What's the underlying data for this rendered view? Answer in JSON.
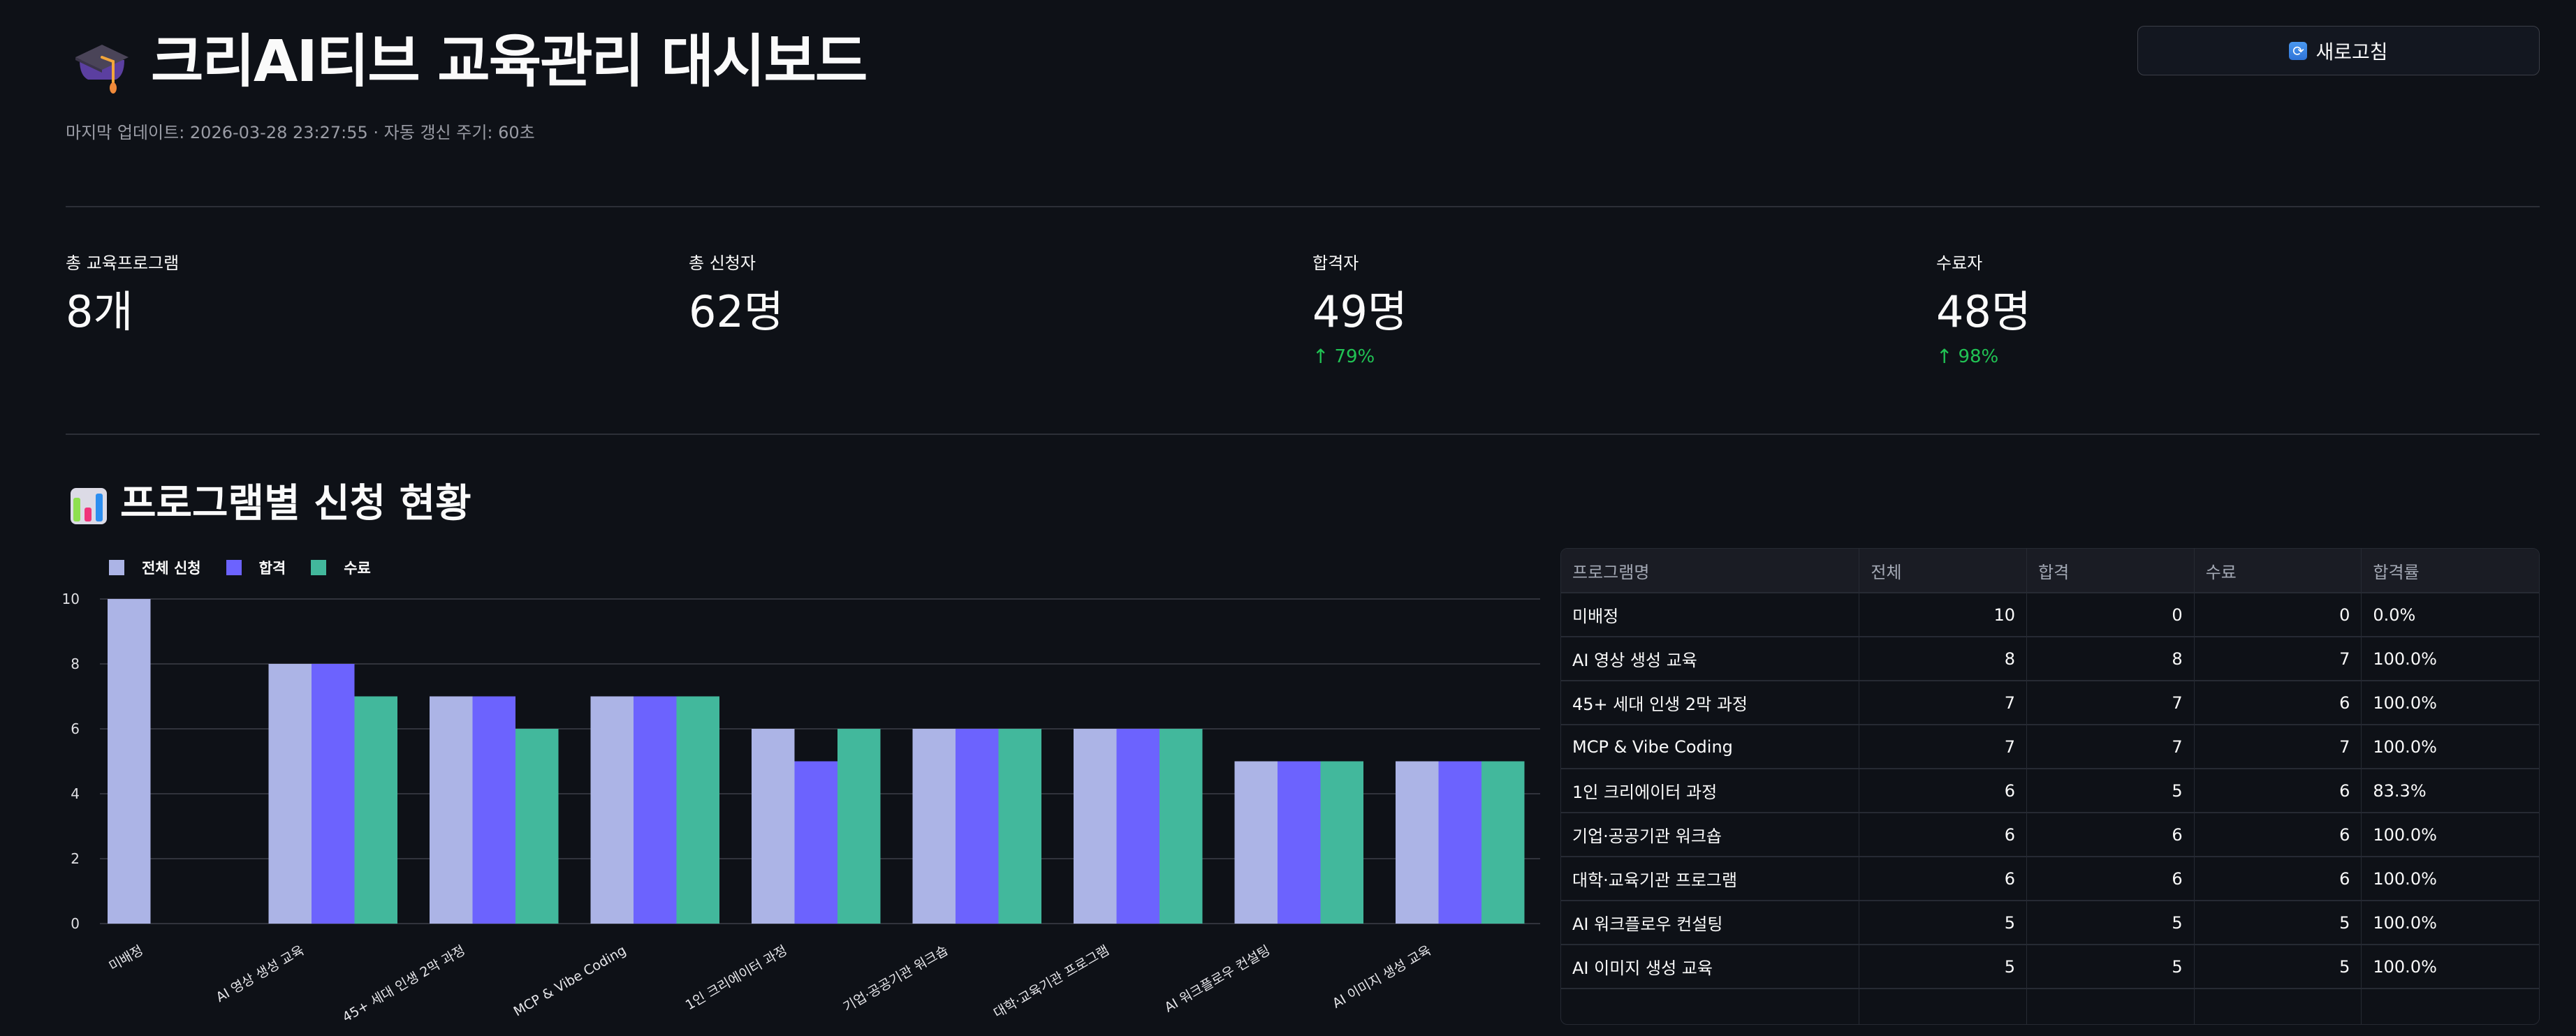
{
  "header": {
    "title_emoji": "graduation-cap",
    "title": "크리AI티브 교육관리 대시보드",
    "subtitle": "마지막 업데이트: 2026-03-28 23:27:55 · 자동 갱신 주기: 60초",
    "refresh_icon": "🔄",
    "refresh_label": "새로고침"
  },
  "metrics": [
    {
      "label": "총 교육프로그램",
      "value": "8개",
      "delta": null
    },
    {
      "label": "총 신청자",
      "value": "62명",
      "delta": null
    },
    {
      "label": "합격자",
      "value": "49명",
      "delta": "79%",
      "delta_direction": "up"
    },
    {
      "label": "수료자",
      "value": "48명",
      "delta": "98%",
      "delta_direction": "up"
    }
  ],
  "section": {
    "emoji": "bar-chart",
    "title": "프로그램별 신청 현황"
  },
  "colors": {
    "total": "#acb4e6",
    "passed": "#6c63fe",
    "completed": "#42b89c",
    "delta_up": "#21c354"
  },
  "chart_data": {
    "type": "bar",
    "title": "",
    "xlabel": "",
    "ylabel": "",
    "ylim": [
      0,
      10
    ],
    "yticks": [
      0,
      2,
      4,
      6,
      8,
      10
    ],
    "grid": true,
    "legend_position": "top-left",
    "categories": [
      "미배정",
      "AI 영상 생성 교육",
      "45+ 세대 인생 2막 과정",
      "MCP & Vibe Coding",
      "1인 크리에이터 과정",
      "기업·공공기관 워크숍",
      "대학·교육기관 프로그램",
      "AI 워크플로우 컨설팅",
      "AI 이미지 생성 교육"
    ],
    "series": [
      {
        "name": "전체 신청",
        "color": "#acb4e6",
        "values": [
          10,
          8,
          7,
          7,
          6,
          6,
          6,
          5,
          5
        ]
      },
      {
        "name": "합격",
        "color": "#6c63fe",
        "values": [
          0,
          8,
          7,
          7,
          5,
          6,
          6,
          5,
          5
        ]
      },
      {
        "name": "수료",
        "color": "#42b89c",
        "values": [
          0,
          7,
          6,
          7,
          6,
          6,
          6,
          5,
          5
        ]
      }
    ]
  },
  "table": {
    "columns": [
      "프로그램명",
      "전체",
      "합격",
      "수료",
      "합격률"
    ],
    "rows": [
      [
        "미배정",
        "10",
        "0",
        "0",
        "0.0%"
      ],
      [
        "AI 영상 생성 교육",
        "8",
        "8",
        "7",
        "100.0%"
      ],
      [
        "45+ 세대 인생 2막 과정",
        "7",
        "7",
        "6",
        "100.0%"
      ],
      [
        "MCP & Vibe Coding",
        "7",
        "7",
        "7",
        "100.0%"
      ],
      [
        "1인 크리에이터 과정",
        "6",
        "5",
        "6",
        "83.3%"
      ],
      [
        "기업·공공기관 워크숍",
        "6",
        "6",
        "6",
        "100.0%"
      ],
      [
        "대학·교육기관 프로그램",
        "6",
        "6",
        "6",
        "100.0%"
      ],
      [
        "AI 워크플로우 컨설팅",
        "5",
        "5",
        "5",
        "100.0%"
      ],
      [
        "AI 이미지 생성 교육",
        "5",
        "5",
        "5",
        "100.0%"
      ]
    ]
  }
}
